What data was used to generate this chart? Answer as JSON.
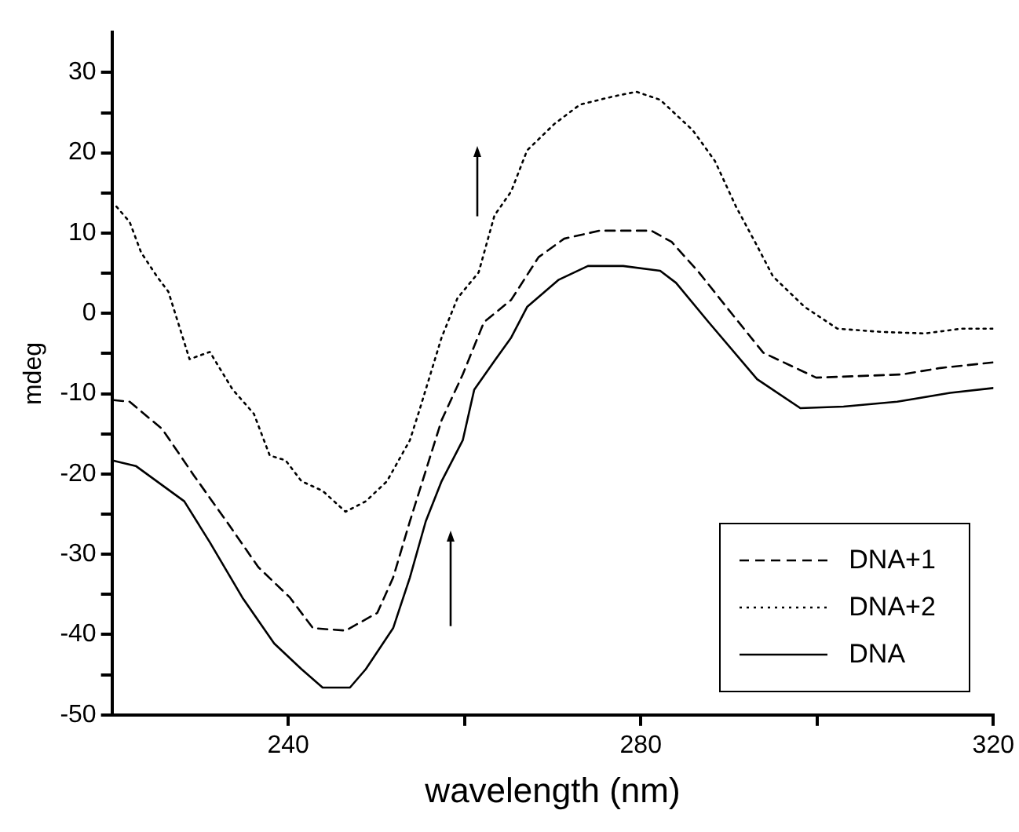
{
  "chart_data": {
    "type": "line",
    "xlabel": "wavelength (nm)",
    "ylabel": "mdeg",
    "xlim": [
      220,
      320
    ],
    "ylim": [
      -50,
      35
    ],
    "xticks": [
      240,
      {
        "value": 260,
        "label": null
      },
      280,
      {
        "value": 300,
        "label": null
      },
      320
    ],
    "yticks": [
      -50,
      {
        "value": -45,
        "label": null
      },
      -40,
      {
        "value": -35,
        "label": null
      },
      -30,
      {
        "value": -25,
        "label": null
      },
      -20,
      {
        "value": -15,
        "label": null
      },
      -10,
      {
        "value": -5,
        "label": null
      },
      0,
      {
        "value": 5,
        "label": null
      },
      10,
      {
        "value": 15,
        "label": null
      },
      20,
      {
        "value": 25,
        "label": null
      },
      30
    ],
    "grid": false,
    "legend": "bottom right",
    "marker": "none",
    "series": [
      {
        "name": "DNA+1",
        "color": "#000000",
        "line_style": "dashed",
        "x": [
          220.2,
          222.0,
          225.7,
          229.3,
          233.0,
          236.6,
          240.2,
          242.8,
          246.5,
          250.1,
          251.9,
          253.8,
          255.6,
          257.4,
          259.8,
          262.2,
          265.3,
          268.4,
          271.3,
          275.3,
          281.2,
          283.5,
          286.6,
          290.3,
          293.9,
          299.9,
          309.6,
          314.0,
          320
        ],
        "values": [
          -10.8,
          -11.0,
          -14.4,
          -20.2,
          -25.9,
          -31.6,
          -35.4,
          -39.2,
          -39.5,
          -37.3,
          -32.9,
          -25.9,
          -19.6,
          -13.3,
          -7.6,
          -1.1,
          1.7,
          7.0,
          9.3,
          10.3,
          10.3,
          8.9,
          5.1,
          0,
          -4.9,
          -8.0,
          -7.6,
          -6.8,
          -6.1
        ]
      },
      {
        "name": "DNA+2",
        "color": "#000000",
        "line_style": "dotted",
        "x": [
          220.5,
          222.0,
          223.3,
          225.1,
          226.4,
          228.8,
          231.1,
          233.7,
          236.1,
          237.9,
          239.7,
          241.5,
          243.9,
          246.5,
          248.8,
          251.2,
          253.8,
          254.9,
          257.4,
          259.2,
          261.6,
          263.4,
          265.3,
          267.1,
          270.2,
          273.1,
          276.8,
          279.5,
          282.2,
          285.9,
          288.4,
          290.8,
          293.2,
          295.0,
          298.6,
          302.3,
          307.2,
          312.2,
          316.4,
          320
        ],
        "values": [
          13.3,
          11.4,
          7.6,
          4.6,
          2.7,
          -5.7,
          -4.8,
          -9.5,
          -12.5,
          -17.7,
          -18.3,
          -20.9,
          -22.1,
          -24.7,
          -23.4,
          -20.9,
          -15.8,
          -12.0,
          -3.0,
          1.9,
          5.1,
          12.2,
          15.2,
          20.3,
          23.6,
          26.0,
          27.0,
          27.6,
          26.6,
          22.8,
          19.0,
          13.3,
          8.4,
          4.6,
          0.8,
          -1.9,
          -2.3,
          -2.5,
          -1.9,
          -1.9
        ]
      },
      {
        "name": "DNA",
        "color": "#000000",
        "line_style": "solid",
        "x": [
          220,
          222.7,
          228.2,
          231.1,
          234.8,
          238.4,
          241.5,
          243.9,
          247.0,
          248.8,
          251.9,
          253.8,
          255.6,
          257.4,
          259.8,
          261.1,
          263.4,
          265.3,
          267.1,
          270.7,
          274.0,
          278.0,
          282.2,
          284.0,
          287.7,
          293.2,
          298.1,
          303.0,
          309.1,
          315.1,
          320
        ],
        "values": [
          -18.3,
          -19.0,
          -23.4,
          -28.5,
          -35.4,
          -41.1,
          -44.3,
          -46.6,
          -46.6,
          -44.3,
          -39.2,
          -32.9,
          -25.9,
          -20.9,
          -15.8,
          -9.5,
          -5.9,
          -3.0,
          0.8,
          4.2,
          5.9,
          5.9,
          5.3,
          3.8,
          -1.1,
          -8.2,
          -11.8,
          -11.6,
          -11.0,
          -9.9,
          -9.3
        ]
      }
    ]
  }
}
